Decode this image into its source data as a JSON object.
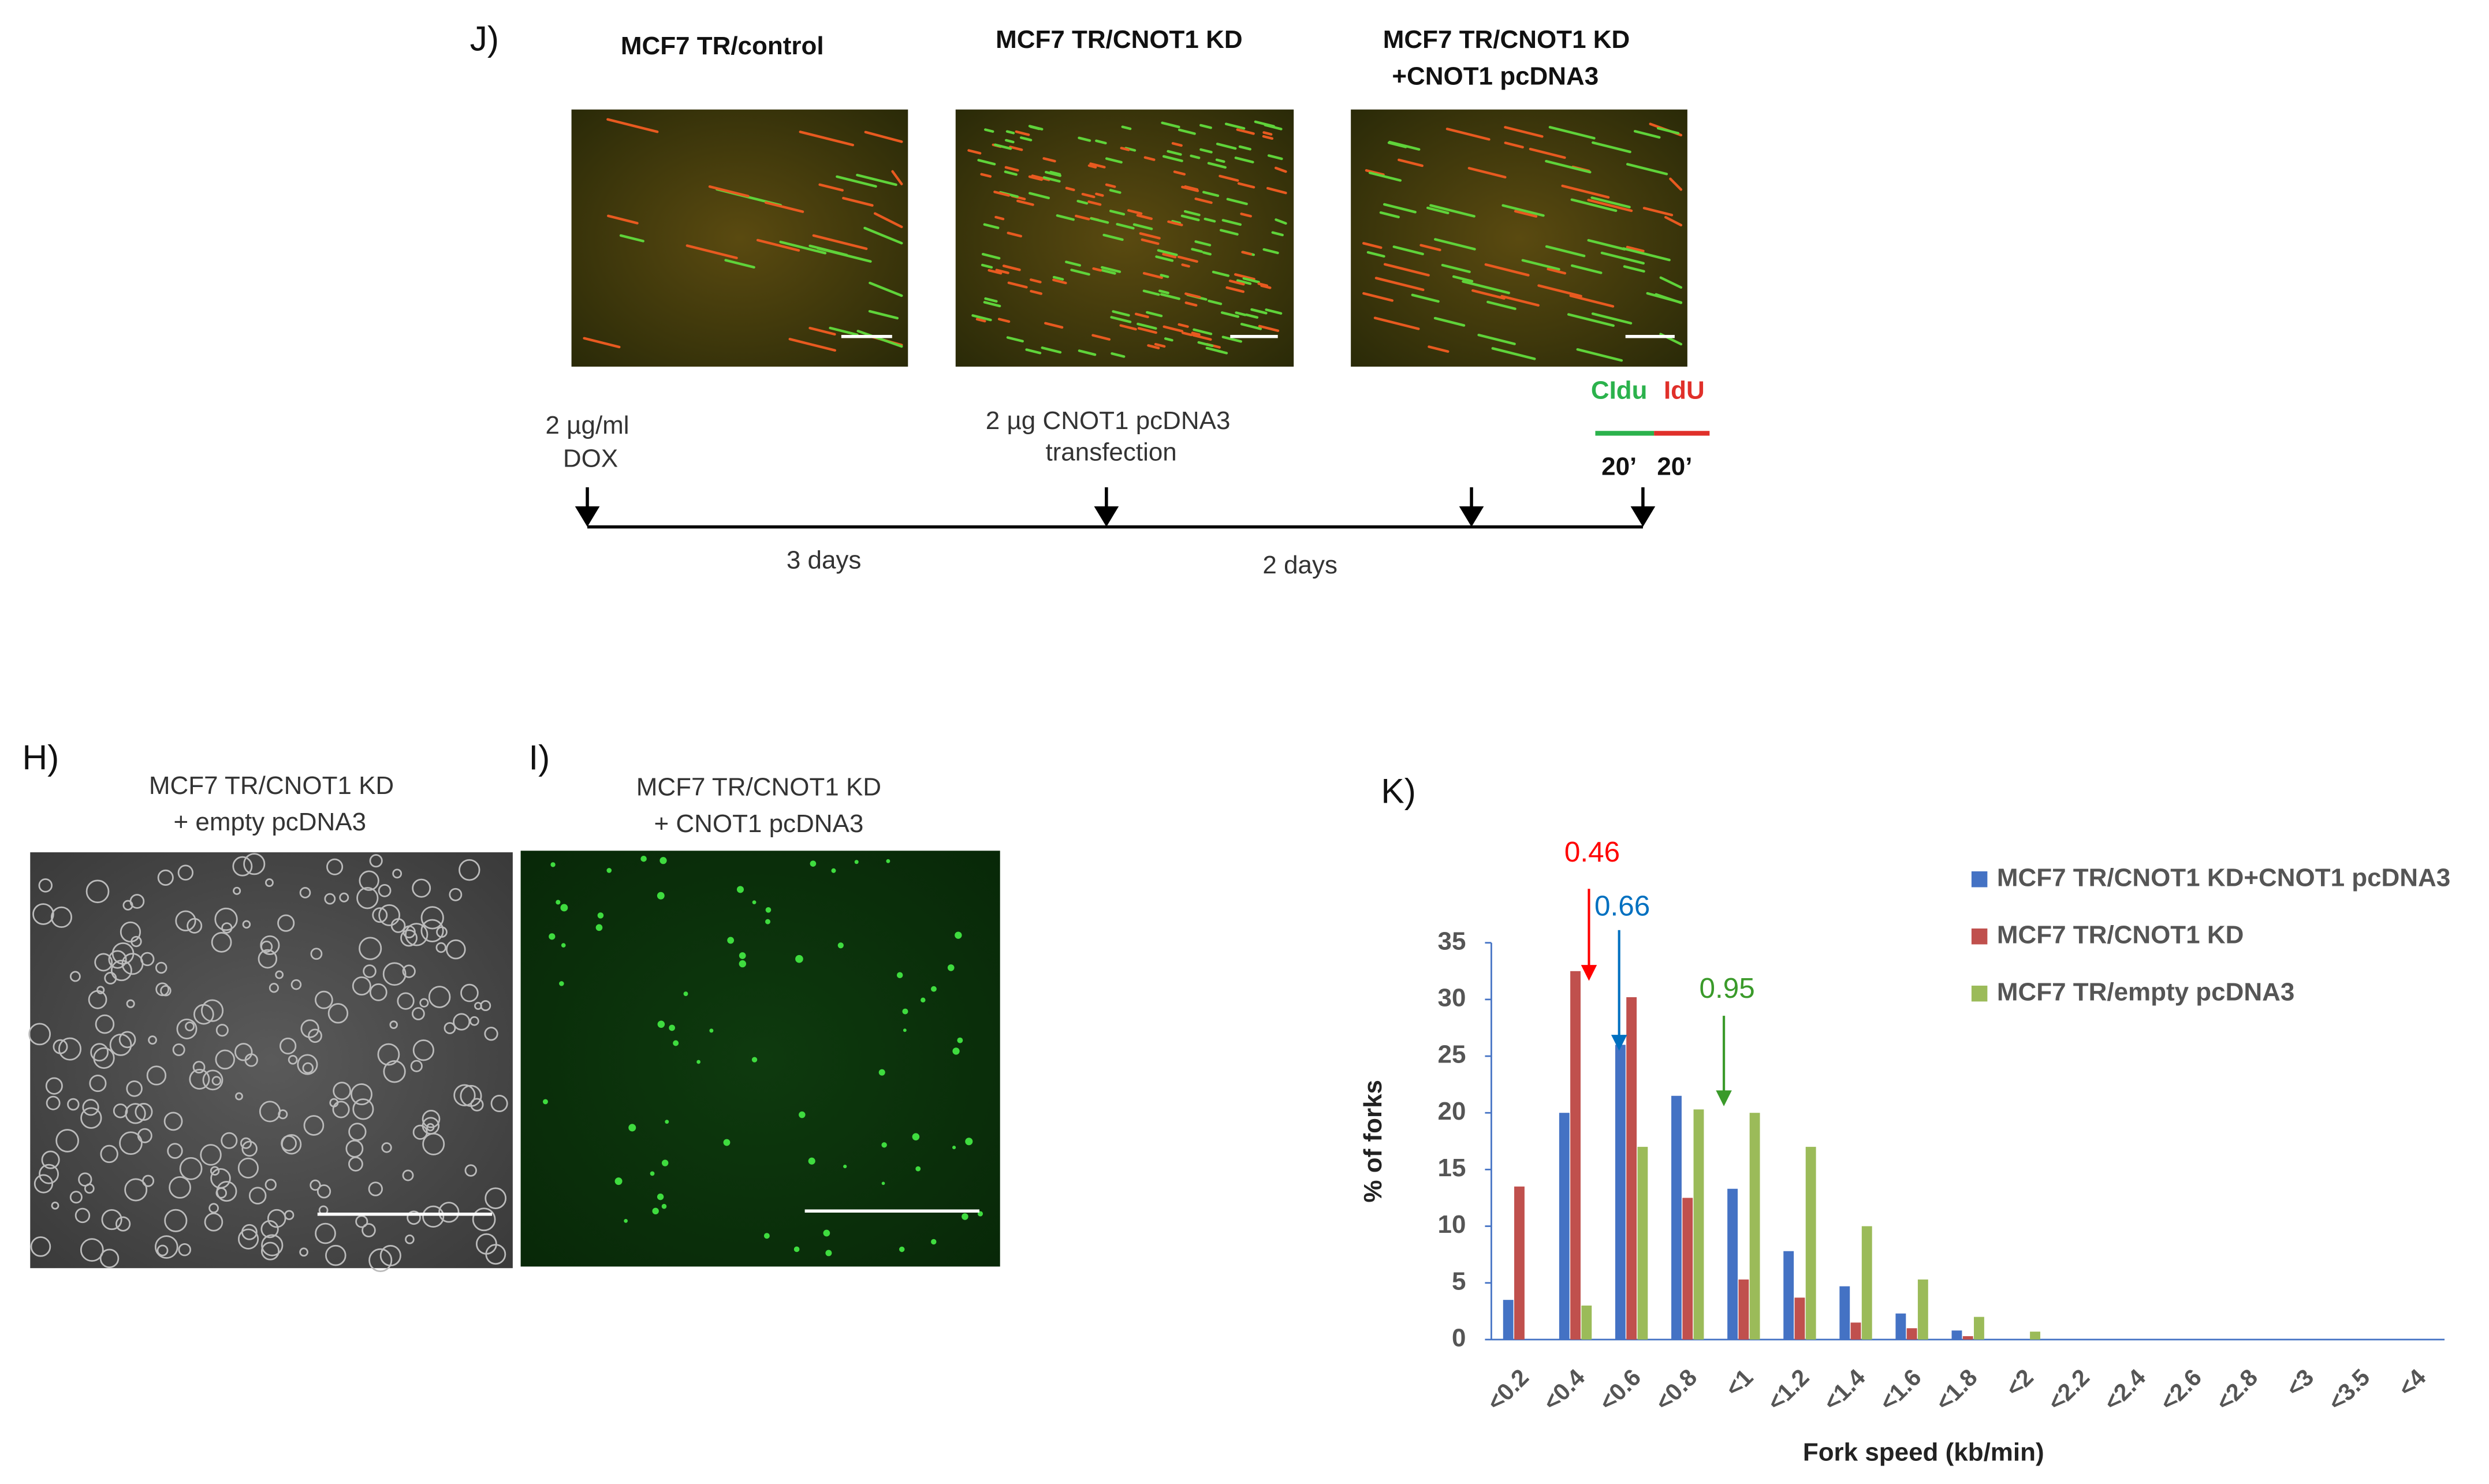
{
  "panel_j": {
    "label": "J)",
    "titles": [
      [
        "MCF7 TR/control"
      ],
      [
        "MCF7 TR/CNOT1 KD"
      ],
      [
        "MCF7 TR/CNOT1 KD",
        "+CNOT1 pcDNA3"
      ]
    ],
    "timeline": {
      "dox": [
        "2 µg/ml",
        "DOX"
      ],
      "transfection": [
        "2 µg CNOT1 pcDNA3",
        "transfection"
      ],
      "cldu": "CIdu",
      "idu": "IdU",
      "pulse1": "20’",
      "pulse2": "20’",
      "interval1": "3 days",
      "interval2": "2 days"
    }
  },
  "panel_h": {
    "label": "H)",
    "title": [
      "MCF7 TR/CNOT1 KD",
      "+ empty pcDNA3"
    ]
  },
  "panel_i": {
    "label": "I)",
    "title": [
      "MCF7 TR/CNOT1 KD",
      "+ CNOT1 pcDNA3"
    ]
  },
  "panel_k_label": "K)",
  "chart_data": {
    "type": "bar",
    "categories": [
      "<0.2",
      "<0.4",
      "<0.6",
      "<0.8",
      "<1",
      "<1.2",
      "<1.4",
      "<1.6",
      "<1.8",
      "<2",
      "<2.2",
      "<2.4",
      "<2.6",
      "<2.8",
      "<3",
      "<3.5",
      "<4"
    ],
    "series": [
      {
        "name": "MCF7 TR/CNOT1 KD+CNOT1 pcDNA3",
        "color": "#4472c4",
        "values": [
          3.5,
          20,
          26,
          21.5,
          13.3,
          7.8,
          4.7,
          2.3,
          0.8,
          0,
          0,
          0,
          0,
          0,
          0,
          0,
          0
        ]
      },
      {
        "name": "MCF7 TR/CNOT1 KD",
        "color": "#c0504d",
        "values": [
          13.5,
          32.5,
          30.2,
          12.5,
          5.3,
          3.7,
          1.5,
          1,
          0.3,
          0,
          0,
          0,
          0,
          0,
          0,
          0,
          0
        ]
      },
      {
        "name": "MCF7 TR/empty pcDNA3",
        "color": "#9bbb59",
        "values": [
          0,
          3,
          17,
          20.3,
          20,
          17,
          10,
          5.3,
          2,
          0.7,
          0,
          0,
          0,
          0,
          0,
          0,
          0
        ]
      }
    ],
    "ylim": [
      0,
      35
    ],
    "yticks": [
      0,
      5,
      10,
      15,
      20,
      25,
      30,
      35
    ],
    "xlabel": "Fork speed (kb/min)",
    "ylabel": "% of forks",
    "annotations": [
      {
        "text": "0.46",
        "color": "#ff0000"
      },
      {
        "text": "0.66",
        "color": "#0070c0"
      },
      {
        "text": "0.95",
        "color": "#3a9a2a"
      }
    ],
    "legend": "right"
  }
}
